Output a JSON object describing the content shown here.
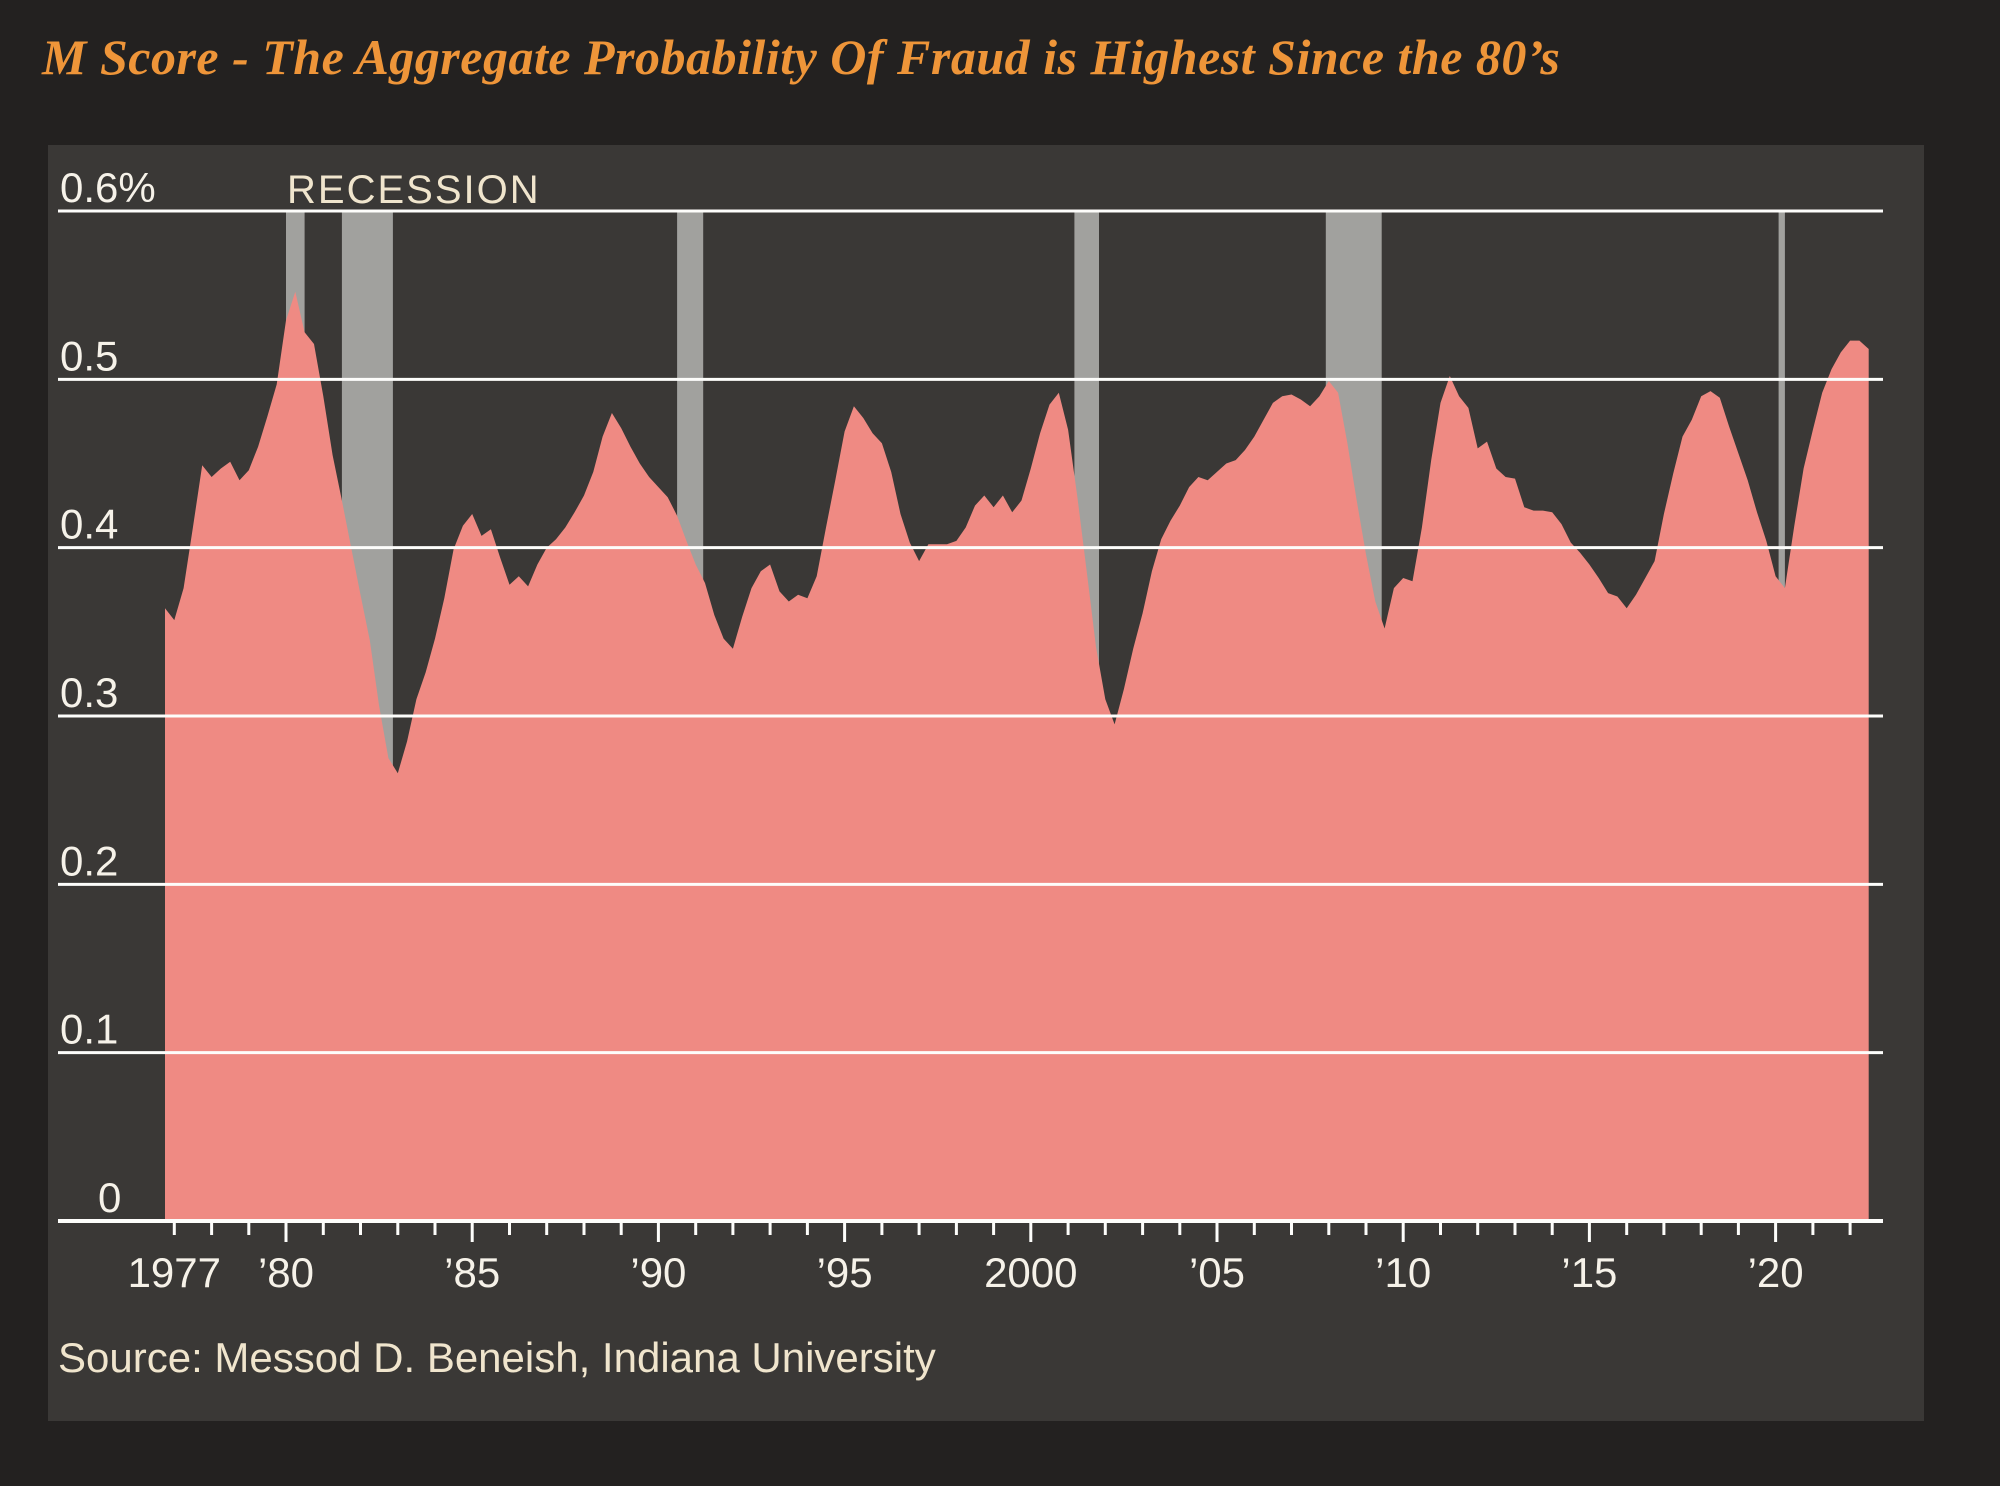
{
  "chart_data": {
    "type": "area",
    "title": "M Score - The Aggregate Probability Of Fraud is Highest Since the 80’s",
    "recession_label": "RECESSION",
    "source": "Source: Messod D. Beneish, Indiana University",
    "xlabel": "",
    "ylabel": "",
    "xlim": [
      1976.75,
      2022.5
    ],
    "ylim": [
      0,
      0.6
    ],
    "grid": true,
    "legend": "none",
    "y_ticks": [
      {
        "value": 0.6,
        "label": "0.6%"
      },
      {
        "value": 0.5,
        "label": "0.5"
      },
      {
        "value": 0.4,
        "label": "0.4"
      },
      {
        "value": 0.3,
        "label": "0.3"
      },
      {
        "value": 0.2,
        "label": "0.2"
      },
      {
        "value": 0.1,
        "label": "0.1"
      },
      {
        "value": 0,
        "label": "0"
      }
    ],
    "x_ticks": [
      {
        "year": 1977,
        "label": "1977"
      },
      {
        "year": 1980,
        "label": "’80"
      },
      {
        "year": 1985,
        "label": "’85"
      },
      {
        "year": 1990,
        "label": "’90"
      },
      {
        "year": 1995,
        "label": "’95"
      },
      {
        "year": 2000,
        "label": "2000"
      },
      {
        "year": 2005,
        "label": "’05"
      },
      {
        "year": 2010,
        "label": "’10"
      },
      {
        "year": 2015,
        "label": "’15"
      },
      {
        "year": 2020,
        "label": "’20"
      }
    ],
    "recession_bands": [
      [
        1980.0,
        1980.5
      ],
      [
        1981.5,
        1982.87
      ],
      [
        1990.5,
        1991.2
      ],
      [
        2001.17,
        2001.83
      ],
      [
        2007.92,
        2009.42
      ],
      [
        2020.08,
        2020.25
      ]
    ],
    "series_name": "Aggregate probability of fraud (M Score)",
    "points": [
      [
        1976.75,
        0.364
      ],
      [
        1977.0,
        0.357
      ],
      [
        1977.25,
        0.376
      ],
      [
        1977.5,
        0.412
      ],
      [
        1977.75,
        0.449
      ],
      [
        1978.0,
        0.442
      ],
      [
        1978.25,
        0.447
      ],
      [
        1978.5,
        0.451
      ],
      [
        1978.75,
        0.44
      ],
      [
        1979.0,
        0.446
      ],
      [
        1979.25,
        0.46
      ],
      [
        1979.5,
        0.478
      ],
      [
        1979.75,
        0.497
      ],
      [
        1980.0,
        0.535
      ],
      [
        1980.25,
        0.552
      ],
      [
        1980.5,
        0.528
      ],
      [
        1980.75,
        0.521
      ],
      [
        1981.0,
        0.49
      ],
      [
        1981.25,
        0.455
      ],
      [
        1981.5,
        0.428
      ],
      [
        1981.75,
        0.4
      ],
      [
        1982.0,
        0.372
      ],
      [
        1982.25,
        0.345
      ],
      [
        1982.5,
        0.306
      ],
      [
        1982.75,
        0.275
      ],
      [
        1983.0,
        0.266
      ],
      [
        1983.25,
        0.285
      ],
      [
        1983.5,
        0.31
      ],
      [
        1983.75,
        0.326
      ],
      [
        1984.0,
        0.346
      ],
      [
        1984.25,
        0.37
      ],
      [
        1984.5,
        0.399
      ],
      [
        1984.75,
        0.413
      ],
      [
        1985.0,
        0.42
      ],
      [
        1985.25,
        0.407
      ],
      [
        1985.5,
        0.411
      ],
      [
        1985.75,
        0.394
      ],
      [
        1986.0,
        0.378
      ],
      [
        1986.25,
        0.383
      ],
      [
        1986.5,
        0.377
      ],
      [
        1986.75,
        0.39
      ],
      [
        1987.0,
        0.4
      ],
      [
        1987.25,
        0.405
      ],
      [
        1987.5,
        0.412
      ],
      [
        1987.75,
        0.421
      ],
      [
        1988.0,
        0.431
      ],
      [
        1988.25,
        0.445
      ],
      [
        1988.5,
        0.466
      ],
      [
        1988.75,
        0.48
      ],
      [
        1989.0,
        0.471
      ],
      [
        1989.25,
        0.46
      ],
      [
        1989.5,
        0.45
      ],
      [
        1989.75,
        0.442
      ],
      [
        1990.0,
        0.436
      ],
      [
        1990.25,
        0.43
      ],
      [
        1990.5,
        0.419
      ],
      [
        1990.75,
        0.404
      ],
      [
        1991.0,
        0.39
      ],
      [
        1991.25,
        0.379
      ],
      [
        1991.5,
        0.36
      ],
      [
        1991.75,
        0.346
      ],
      [
        1992.0,
        0.34
      ],
      [
        1992.25,
        0.359
      ],
      [
        1992.5,
        0.376
      ],
      [
        1992.75,
        0.386
      ],
      [
        1993.0,
        0.39
      ],
      [
        1993.25,
        0.374
      ],
      [
        1993.5,
        0.368
      ],
      [
        1993.75,
        0.372
      ],
      [
        1994.0,
        0.37
      ],
      [
        1994.25,
        0.383
      ],
      [
        1994.5,
        0.412
      ],
      [
        1994.75,
        0.44
      ],
      [
        1995.0,
        0.469
      ],
      [
        1995.25,
        0.484
      ],
      [
        1995.5,
        0.477
      ],
      [
        1995.75,
        0.468
      ],
      [
        1996.0,
        0.462
      ],
      [
        1996.25,
        0.445
      ],
      [
        1996.5,
        0.42
      ],
      [
        1996.75,
        0.403
      ],
      [
        1997.0,
        0.392
      ],
      [
        1997.25,
        0.402
      ],
      [
        1997.5,
        0.402
      ],
      [
        1997.75,
        0.402
      ],
      [
        1998.0,
        0.404
      ],
      [
        1998.25,
        0.412
      ],
      [
        1998.5,
        0.425
      ],
      [
        1998.75,
        0.431
      ],
      [
        1999.0,
        0.424
      ],
      [
        1999.25,
        0.431
      ],
      [
        1999.5,
        0.421
      ],
      [
        1999.75,
        0.428
      ],
      [
        2000.0,
        0.447
      ],
      [
        2000.25,
        0.468
      ],
      [
        2000.5,
        0.485
      ],
      [
        2000.75,
        0.492
      ],
      [
        2001.0,
        0.47
      ],
      [
        2001.25,
        0.43
      ],
      [
        2001.5,
        0.386
      ],
      [
        2001.75,
        0.341
      ],
      [
        2002.0,
        0.31
      ],
      [
        2002.25,
        0.295
      ],
      [
        2002.5,
        0.316
      ],
      [
        2002.75,
        0.34
      ],
      [
        2003.0,
        0.361
      ],
      [
        2003.25,
        0.386
      ],
      [
        2003.5,
        0.405
      ],
      [
        2003.75,
        0.416
      ],
      [
        2004.0,
        0.425
      ],
      [
        2004.25,
        0.436
      ],
      [
        2004.5,
        0.442
      ],
      [
        2004.75,
        0.44
      ],
      [
        2005.0,
        0.445
      ],
      [
        2005.25,
        0.45
      ],
      [
        2005.5,
        0.452
      ],
      [
        2005.75,
        0.458
      ],
      [
        2006.0,
        0.466
      ],
      [
        2006.25,
        0.476
      ],
      [
        2006.5,
        0.486
      ],
      [
        2006.75,
        0.49
      ],
      [
        2007.0,
        0.491
      ],
      [
        2007.25,
        0.488
      ],
      [
        2007.5,
        0.484
      ],
      [
        2007.75,
        0.49
      ],
      [
        2008.0,
        0.499
      ],
      [
        2008.25,
        0.492
      ],
      [
        2008.5,
        0.462
      ],
      [
        2008.75,
        0.428
      ],
      [
        2009.0,
        0.396
      ],
      [
        2009.25,
        0.368
      ],
      [
        2009.5,
        0.352
      ],
      [
        2009.75,
        0.376
      ],
      [
        2010.0,
        0.382
      ],
      [
        2010.25,
        0.38
      ],
      [
        2010.5,
        0.412
      ],
      [
        2010.75,
        0.452
      ],
      [
        2011.0,
        0.486
      ],
      [
        2011.25,
        0.502
      ],
      [
        2011.5,
        0.49
      ],
      [
        2011.75,
        0.483
      ],
      [
        2012.0,
        0.459
      ],
      [
        2012.25,
        0.463
      ],
      [
        2012.5,
        0.447
      ],
      [
        2012.75,
        0.442
      ],
      [
        2013.0,
        0.441
      ],
      [
        2013.25,
        0.424
      ],
      [
        2013.5,
        0.422
      ],
      [
        2013.75,
        0.422
      ],
      [
        2014.0,
        0.421
      ],
      [
        2014.25,
        0.414
      ],
      [
        2014.5,
        0.403
      ],
      [
        2014.75,
        0.397
      ],
      [
        2015.0,
        0.39
      ],
      [
        2015.25,
        0.382
      ],
      [
        2015.5,
        0.373
      ],
      [
        2015.75,
        0.371
      ],
      [
        2016.0,
        0.364
      ],
      [
        2016.25,
        0.372
      ],
      [
        2016.5,
        0.382
      ],
      [
        2016.75,
        0.392
      ],
      [
        2017.0,
        0.42
      ],
      [
        2017.25,
        0.444
      ],
      [
        2017.5,
        0.466
      ],
      [
        2017.75,
        0.476
      ],
      [
        2018.0,
        0.49
      ],
      [
        2018.25,
        0.493
      ],
      [
        2018.5,
        0.489
      ],
      [
        2018.75,
        0.472
      ],
      [
        2019.0,
        0.456
      ],
      [
        2019.25,
        0.44
      ],
      [
        2019.5,
        0.421
      ],
      [
        2019.75,
        0.404
      ],
      [
        2020.0,
        0.383
      ],
      [
        2020.25,
        0.376
      ],
      [
        2020.5,
        0.413
      ],
      [
        2020.75,
        0.447
      ],
      [
        2021.0,
        0.47
      ],
      [
        2021.25,
        0.492
      ],
      [
        2021.5,
        0.506
      ],
      [
        2021.75,
        0.516
      ],
      [
        2022.0,
        0.523
      ],
      [
        2022.25,
        0.523
      ],
      [
        2022.5,
        0.518
      ]
    ],
    "colors": {
      "background": "#232120",
      "panel": "#3A3836",
      "area": "#EF8A83",
      "recession_band": "#A1A19E",
      "grid": "#FDFDFB",
      "axis_text": "#F6F2E9",
      "cream_text": "#F0E5CD",
      "title": "#EE9539"
    }
  }
}
